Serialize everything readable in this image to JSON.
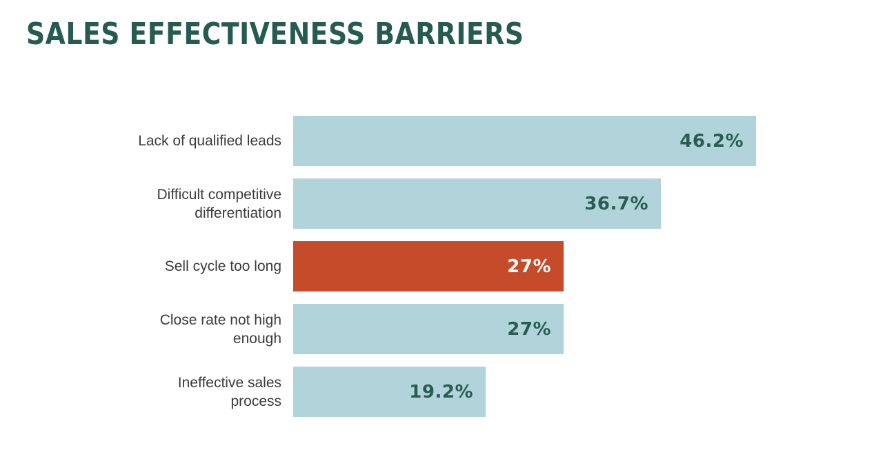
{
  "header": {
    "title": "SALES EFFECTIVENESS BARRIERS"
  },
  "chart_data": {
    "type": "bar",
    "orientation": "horizontal",
    "title": "SALES EFFECTIVENESS BARRIERS",
    "categories": [
      "Lack of qualified leads",
      "Difficult competitive\ndifferentiation",
      "Sell cycle too long",
      "Close rate not high\nenough",
      "Ineffective sales\nprocess"
    ],
    "values": [
      46.2,
      36.7,
      27,
      27,
      19.2
    ],
    "value_labels": [
      "46.2%",
      "36.7%",
      "27%",
      "27%",
      "19.2%"
    ],
    "highlight_index": 2,
    "xlim": [
      0,
      46.2
    ],
    "grid": false,
    "legend": false,
    "axis_ticks_visible": false,
    "colors": {
      "bar_default": "#B1D3DA",
      "bar_highlight": "#C54B2B",
      "value_text": "#2B5C53",
      "value_text_highlight": "#FFFFFF",
      "category_text": "#3B3B3B",
      "title_text": "#265B51",
      "background": "#FFFFFF"
    }
  }
}
